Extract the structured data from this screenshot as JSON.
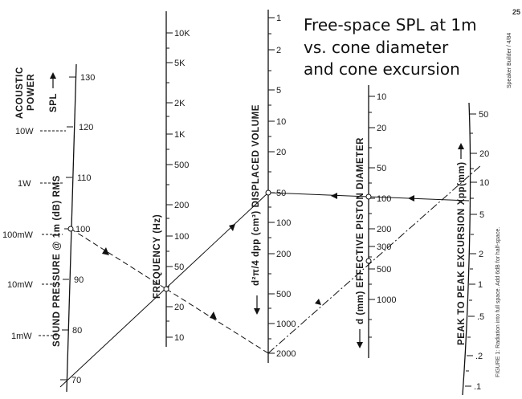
{
  "title_lines": [
    "Free-space SPL at 1m",
    "vs. cone diameter",
    "and cone excursion"
  ],
  "page_number": "25",
  "magazine": "Speaker Builder / 4/84",
  "figure_caption": "FIGURE 1: Radiation into full space. Add 6dB for half-space.",
  "power": {
    "title_lines": [
      "ACOUSTIC",
      "POWER"
    ],
    "labels": [
      "10W",
      "1W",
      "100mW",
      "10mW",
      "1mW"
    ]
  },
  "spl": {
    "top_label": "SPL",
    "title": "SOUND PRESSURE @ 1m (dB) RMS",
    "labels": [
      "130",
      "120",
      "110",
      "100",
      "90",
      "80",
      "70"
    ]
  },
  "frequency": {
    "title": "FREQUENCY (Hz)",
    "labels": [
      "10K",
      "5K",
      "2K",
      "1K",
      "500",
      "200",
      "100",
      "50",
      "20",
      "10"
    ]
  },
  "volume": {
    "title": "d²π/4 dpp (cm³) DISPLACED VOLUME",
    "labels": [
      "1",
      "2",
      "5",
      "10",
      "20",
      "50",
      "100",
      "200",
      "500",
      "1000",
      "2000"
    ]
  },
  "diameter": {
    "title": "d (mm) EFFECTIVE PISTON DIAMETER",
    "labels": [
      "10",
      "20",
      "50",
      "100",
      "200",
      "300",
      "500",
      "1000"
    ]
  },
  "excursion": {
    "title": "PEAK TO PEAK EXCURSION Xpp(mm)",
    "labels": [
      "50",
      "20",
      "10",
      "5",
      "2",
      "1",
      ".5",
      ".2",
      ".1"
    ]
  }
}
